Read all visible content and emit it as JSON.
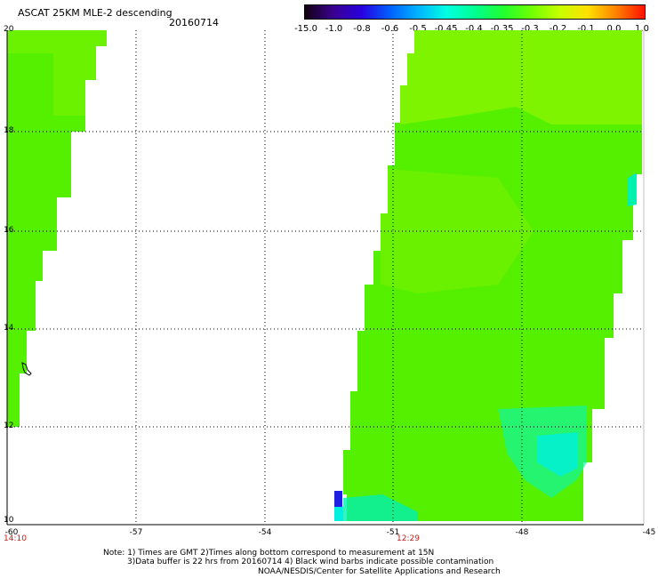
{
  "header": {
    "title": "ASCAT 25KM MLE-2 descending",
    "date": "20160714"
  },
  "colorbar": {
    "labels": [
      "-15.0",
      "-1.0",
      "-0.8",
      "-0.6",
      "-0.5",
      "-0.45",
      "-0.4",
      "-0.35",
      "-0.3",
      "-0.2",
      "-0.1",
      "0.0",
      "1.0"
    ],
    "colors": [
      "#120012",
      "#3a0090",
      "#2800e0",
      "#0060ff",
      "#00b4ff",
      "#00ffe0",
      "#00ff90",
      "#20ff30",
      "#70ff00",
      "#c8ff00",
      "#ffe000",
      "#ff8000",
      "#ff1000"
    ]
  },
  "map": {
    "lat_labels": [
      "20",
      "18",
      "16",
      "14",
      "12",
      "10"
    ],
    "lon_labels": [
      "-60",
      "-57",
      "-54",
      "-51",
      "-48",
      "-45"
    ],
    "time_labels": [
      "14:10",
      "12:29"
    ],
    "swath_colors": {
      "main": "#55f000",
      "light": "#8ef500",
      "cyan": "#00f0b0",
      "blue": "#2020e0"
    }
  },
  "notes": {
    "line1": "Note: 1) Times are GMT 2)Times along bottom correspond to measurement at 15N",
    "line2": "3)Data buffer is 22 hrs from 20160714 4) Black wind barbs indicate possible contamination",
    "line3": "NOAA/NESDIS/Center for Satellite Applications and Research"
  }
}
